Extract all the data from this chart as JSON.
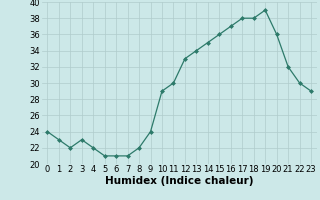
{
  "x": [
    0,
    1,
    2,
    3,
    4,
    5,
    6,
    7,
    8,
    9,
    10,
    11,
    12,
    13,
    14,
    15,
    16,
    17,
    18,
    19,
    20,
    21,
    22,
    23
  ],
  "y": [
    24,
    23,
    22,
    23,
    22,
    21,
    21,
    21,
    22,
    24,
    29,
    30,
    33,
    34,
    35,
    36,
    37,
    38,
    38,
    39,
    36,
    32,
    30,
    29
  ],
  "xlabel": "Humidex (Indice chaleur)",
  "ylim": [
    20,
    40
  ],
  "xlim": [
    -0.5,
    23.5
  ],
  "yticks": [
    20,
    22,
    24,
    26,
    28,
    30,
    32,
    34,
    36,
    38,
    40
  ],
  "xticks": [
    0,
    1,
    2,
    3,
    4,
    5,
    6,
    7,
    8,
    9,
    10,
    11,
    12,
    13,
    14,
    15,
    16,
    17,
    18,
    19,
    20,
    21,
    22,
    23
  ],
  "line_color": "#2d7a6a",
  "marker": "D",
  "marker_size": 2.0,
  "bg_color": "#cce8e8",
  "grid_color": "#b0cccc",
  "xlabel_fontsize": 7.5,
  "tick_fontsize": 6.0
}
